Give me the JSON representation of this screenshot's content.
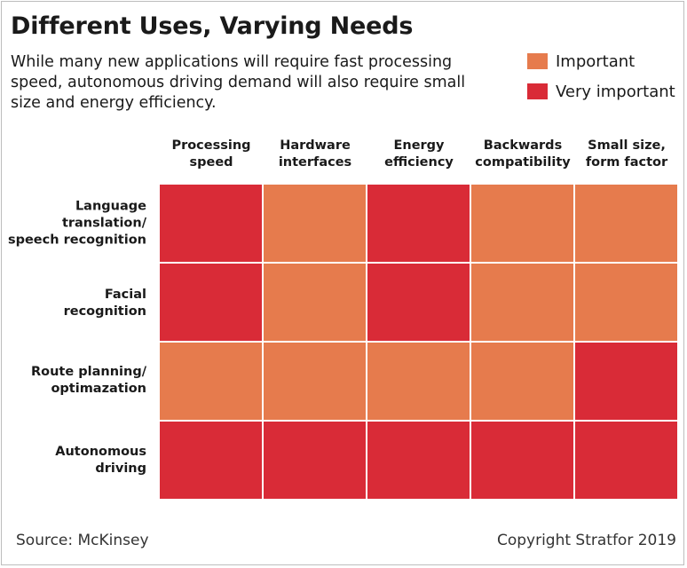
{
  "chart_data": {
    "type": "heatmap",
    "title": "Different Uses, Varying Needs",
    "subtitle": "While many new applications will require fast processing speed, autonomous driving demand will also require small size and energy efficiency.",
    "legend": [
      {
        "label": "Important",
        "color": "#e67b4d"
      },
      {
        "label": "Very important",
        "color": "#d92b37"
      }
    ],
    "legend_placement": "top-right",
    "columns": [
      "Processing\nspeed",
      "Hardware\ninterfaces",
      "Energy\nefficiency",
      "Backwards\ncompatibility",
      "Small size,\nform factor"
    ],
    "rows": [
      {
        "label": "Language\ntranslation/\nspeech recognition",
        "values": [
          "Very important",
          "Important",
          "Very important",
          "Important",
          "Important"
        ]
      },
      {
        "label": "Facial\nrecognition",
        "values": [
          "Very important",
          "Important",
          "Very important",
          "Important",
          "Important"
        ]
      },
      {
        "label": "Route planning/\noptimazation",
        "values": [
          "Important",
          "Important",
          "Important",
          "Important",
          "Very important"
        ]
      },
      {
        "label": "Autonomous\ndriving",
        "values": [
          "Very important",
          "Very important",
          "Very important",
          "Very important",
          "Very important"
        ]
      }
    ]
  },
  "footer": {
    "source": "Source: McKinsey",
    "copyright": "Copyright Stratfor 2019"
  }
}
